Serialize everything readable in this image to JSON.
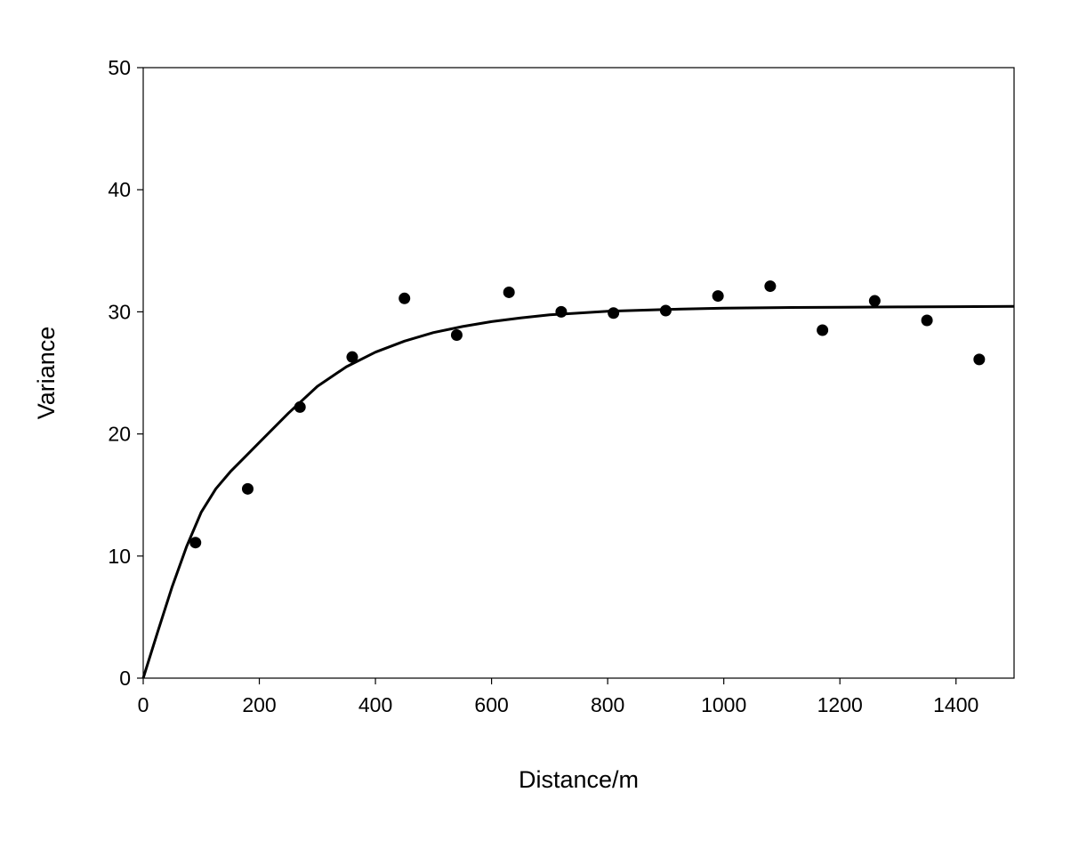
{
  "chart_data": {
    "type": "scatter",
    "title": "",
    "xlabel": "Distance/m",
    "ylabel": "Variance",
    "xlim": [
      0,
      1500
    ],
    "ylim": [
      0,
      50
    ],
    "xticks": [
      0,
      200,
      400,
      600,
      800,
      1000,
      1200,
      1400
    ],
    "yticks": [
      0,
      10,
      20,
      30,
      40,
      50
    ],
    "grid": false,
    "legend": "none",
    "series": [
      {
        "kind": "points",
        "marker": "filled-circle",
        "color": "#000000",
        "x": [
          90,
          180,
          270,
          360,
          450,
          540,
          630,
          720,
          810,
          900,
          990,
          1080,
          1170,
          1260,
          1350,
          1440
        ],
        "y": [
          11.1,
          15.5,
          22.2,
          26.3,
          31.1,
          28.1,
          31.6,
          30.0,
          29.9,
          30.1,
          31.3,
          32.1,
          28.5,
          30.9,
          29.3,
          26.1
        ]
      },
      {
        "kind": "fitted-curve",
        "color": "#000000",
        "x": [
          0,
          25,
          50,
          75,
          100,
          125,
          150,
          175,
          200,
          250,
          300,
          350,
          400,
          450,
          500,
          550,
          600,
          650,
          700,
          800,
          900,
          1000,
          1100,
          1200,
          1300,
          1400,
          1500
        ],
        "y": [
          0,
          3.8,
          7.5,
          10.8,
          13.6,
          15.5,
          16.9,
          18.1,
          19.3,
          21.7,
          23.9,
          25.5,
          26.7,
          27.6,
          28.3,
          28.8,
          29.2,
          29.5,
          29.75,
          30.05,
          30.2,
          30.3,
          30.35,
          30.38,
          30.4,
          30.42,
          30.45
        ]
      }
    ]
  }
}
